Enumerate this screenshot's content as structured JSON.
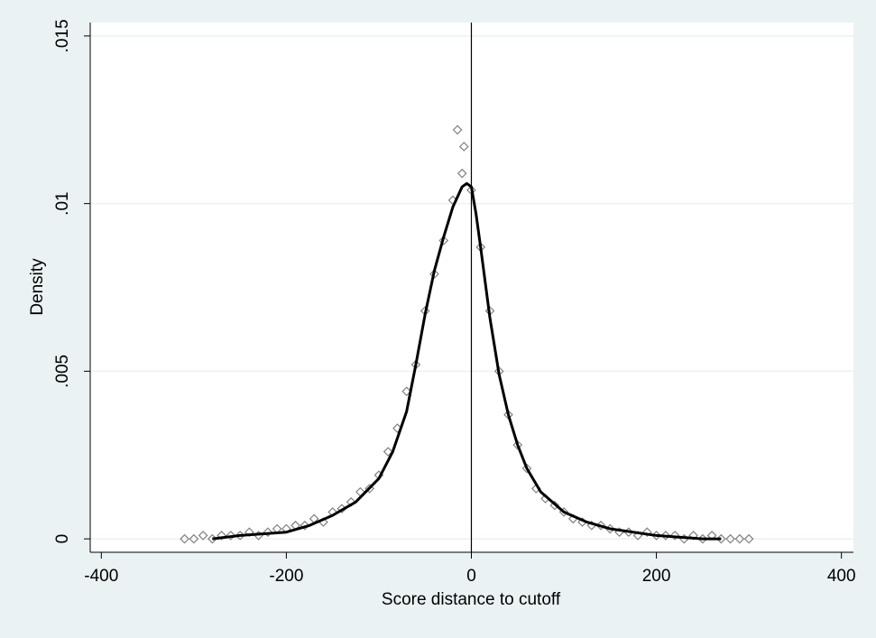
{
  "chart_data": {
    "type": "scatter",
    "xlabel": "Score distance to cutoff",
    "ylabel": "Density",
    "xlim": [
      -412,
      413
    ],
    "ylim": [
      -0.0004,
      0.0154
    ],
    "xticks": [
      -400,
      -200,
      0,
      200,
      400
    ],
    "yticks": [
      0,
      {
        "value": 0.005,
        "label": ".005"
      },
      {
        "value": 0.01,
        "label": ".01"
      },
      {
        "value": 0.015,
        "label": ".015"
      }
    ],
    "grid": true,
    "xline": 0,
    "series": [
      {
        "type": "scatter",
        "color": "#808080",
        "x": [
          -310,
          -300,
          -290,
          -280,
          -270,
          -260,
          -250,
          -240,
          -230,
          -220,
          -210,
          -200,
          -190,
          -180,
          -170,
          -160,
          -150,
          -140,
          -130,
          -120,
          -110,
          -100,
          -90,
          -80,
          -70,
          -60,
          -50,
          -40,
          -30,
          -20,
          -10,
          0,
          10,
          20,
          30,
          40,
          50,
          60,
          70,
          80,
          90,
          100,
          110,
          120,
          130,
          140,
          150,
          160,
          170,
          180,
          190,
          200,
          210,
          220,
          230,
          240,
          250,
          260,
          270,
          280,
          290,
          300,
          -15,
          -8
        ],
        "values": [
          0.0,
          0.0,
          0.0001,
          0.0,
          0.0001,
          0.0001,
          0.0001,
          0.0002,
          0.0001,
          0.0002,
          0.0003,
          0.0003,
          0.0004,
          0.0004,
          0.0006,
          0.0005,
          0.0008,
          0.0009,
          0.0011,
          0.0014,
          0.0015,
          0.0019,
          0.0026,
          0.0033,
          0.0044,
          0.0052,
          0.0068,
          0.0079,
          0.0089,
          0.0101,
          0.0109,
          0.0104,
          0.0087,
          0.0068,
          0.005,
          0.0037,
          0.0028,
          0.0021,
          0.0015,
          0.0012,
          0.001,
          0.0008,
          0.0006,
          0.0005,
          0.0004,
          0.0004,
          0.0003,
          0.0002,
          0.0002,
          0.0001,
          0.0002,
          0.0001,
          0.0001,
          0.0001,
          0.0,
          0.0001,
          0.0,
          0.0001,
          0.0,
          0.0,
          0.0,
          0.0,
          0.0122,
          0.0117
        ]
      },
      {
        "type": "line",
        "color": "#000000",
        "x": [
          -280,
          -250,
          -200,
          -175,
          -150,
          -125,
          -100,
          -85,
          -70,
          -60,
          -50,
          -40,
          -30,
          -20,
          -10,
          -5,
          0,
          5,
          10,
          20,
          30,
          40,
          50,
          60,
          75,
          100,
          125,
          150,
          200,
          250,
          270
        ],
        "values": [
          0.0,
          0.0001,
          0.0002,
          0.0004,
          0.0007,
          0.0011,
          0.0018,
          0.0026,
          0.0038,
          0.0052,
          0.0067,
          0.008,
          0.009,
          0.0099,
          0.0105,
          0.0106,
          0.0105,
          0.0097,
          0.0087,
          0.0066,
          0.0049,
          0.0037,
          0.0028,
          0.0021,
          0.0014,
          0.0008,
          0.0005,
          0.0003,
          0.0001,
          0.0,
          0.0
        ]
      }
    ]
  }
}
